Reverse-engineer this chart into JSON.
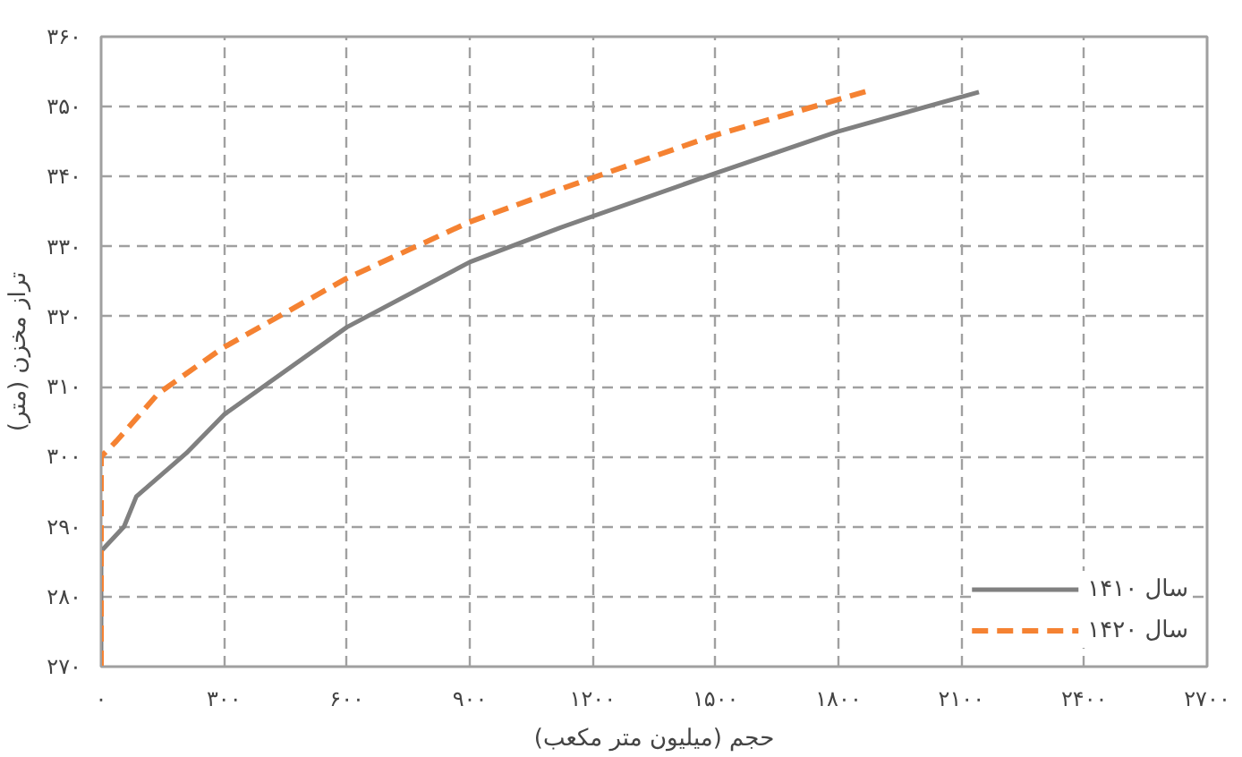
{
  "chart_data": {
    "type": "line",
    "xlabel": "حجم (میلیون متر مکعب)",
    "ylabel": "تراز مخزن (متر)",
    "xlim": [
      0,
      2700
    ],
    "ylim": [
      270,
      360
    ],
    "xticks": [
      {
        "value": 0,
        "label": "۰"
      },
      {
        "value": 300,
        "label": "۳۰۰"
      },
      {
        "value": 600,
        "label": "۶۰۰"
      },
      {
        "value": 900,
        "label": "۹۰۰"
      },
      {
        "value": 1200,
        "label": "۱۲۰۰"
      },
      {
        "value": 1500,
        "label": "۱۵۰۰"
      },
      {
        "value": 1800,
        "label": "۱۸۰۰"
      },
      {
        "value": 2100,
        "label": "۲۱۰۰"
      },
      {
        "value": 2400,
        "label": "۲۴۰۰"
      },
      {
        "value": 2700,
        "label": "۲۷۰۰"
      }
    ],
    "yticks": [
      {
        "value": 270,
        "label": "۲۷۰"
      },
      {
        "value": 280,
        "label": "۲۸۰"
      },
      {
        "value": 290,
        "label": "۲۹۰"
      },
      {
        "value": 300,
        "label": "۳۰۰"
      },
      {
        "value": 310,
        "label": "۳۱۰"
      },
      {
        "value": 320,
        "label": "۳۲۰"
      },
      {
        "value": 330,
        "label": "۳۳۰"
      },
      {
        "value": 340,
        "label": "۳۴۰"
      },
      {
        "value": 350,
        "label": "۳۵۰"
      },
      {
        "value": 360,
        "label": "۳۶۰"
      }
    ],
    "grid": true,
    "legend": "bottom right",
    "series": [
      {
        "name": "سال ۱۴۱۰",
        "color": "#808080",
        "line_style": "solid",
        "x": [
          0,
          0,
          56,
          86,
          208,
          300,
          600,
          900,
          1120,
          1495,
          1796,
          2143
        ],
        "values": [
          270,
          286.5,
          290,
          294.3,
          300.5,
          306,
          318.5,
          327.8,
          332.7,
          340.4,
          346.4,
          352.1
        ]
      },
      {
        "name": "سال ۱۴۲۰",
        "color": "#f58232",
        "line_style": "dashed",
        "x": [
          0,
          0,
          37,
          139,
          296,
          597,
          898,
          1120,
          1491,
          1875
        ],
        "values": [
          270,
          300,
          302.2,
          309,
          315.5,
          325.4,
          333.5,
          338.2,
          345.8,
          352.3
        ]
      }
    ]
  }
}
